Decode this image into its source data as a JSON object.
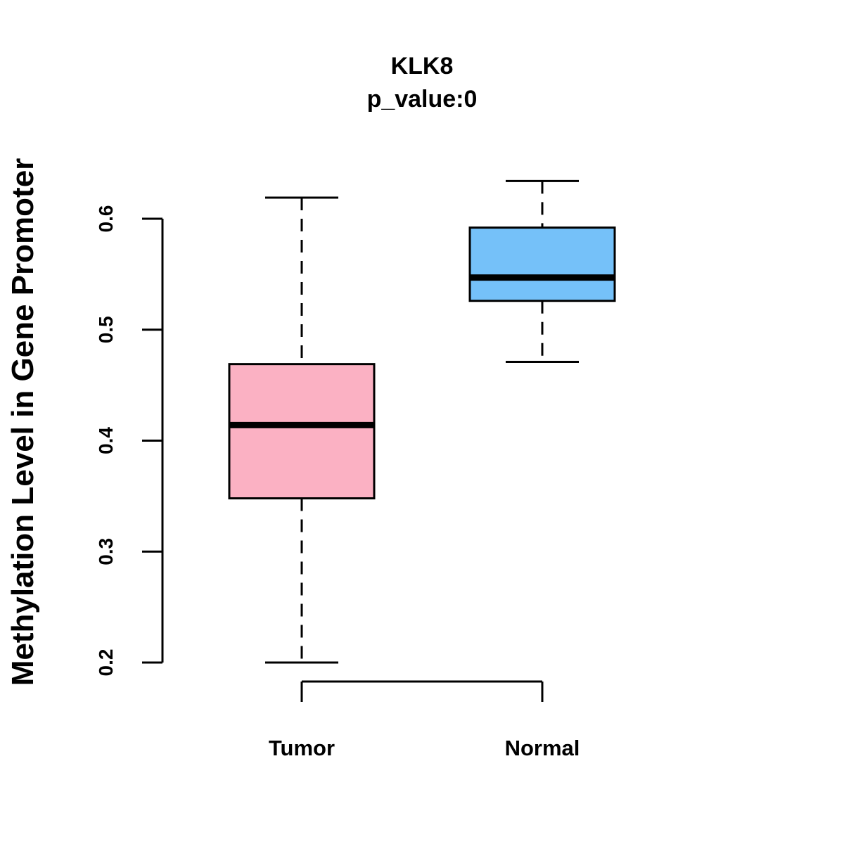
{
  "chart_data": {
    "type": "box",
    "title": "KLK8",
    "subtitle": "p_value:0",
    "xlabel": "",
    "ylabel": "Methylation Level in Gene Promoter",
    "ylim": [
      0.2,
      0.6
    ],
    "yticks": [
      0.2,
      0.3,
      0.4,
      0.5,
      0.6
    ],
    "ytick_labels": [
      "0.2",
      "0.3",
      "0.4",
      "0.5",
      "0.6"
    ],
    "grid": false,
    "categories": [
      "Tumor",
      "Normal"
    ],
    "series": [
      {
        "name": "Tumor",
        "color": "#FBB1C3",
        "whisker_low": 0.2,
        "q1": 0.348,
        "median": 0.414,
        "q3": 0.469,
        "whisker_high": 0.619
      },
      {
        "name": "Normal",
        "color": "#75C1F9",
        "whisker_low": 0.471,
        "q1": 0.526,
        "median": 0.547,
        "q3": 0.592,
        "whisker_high": 0.634
      }
    ]
  }
}
